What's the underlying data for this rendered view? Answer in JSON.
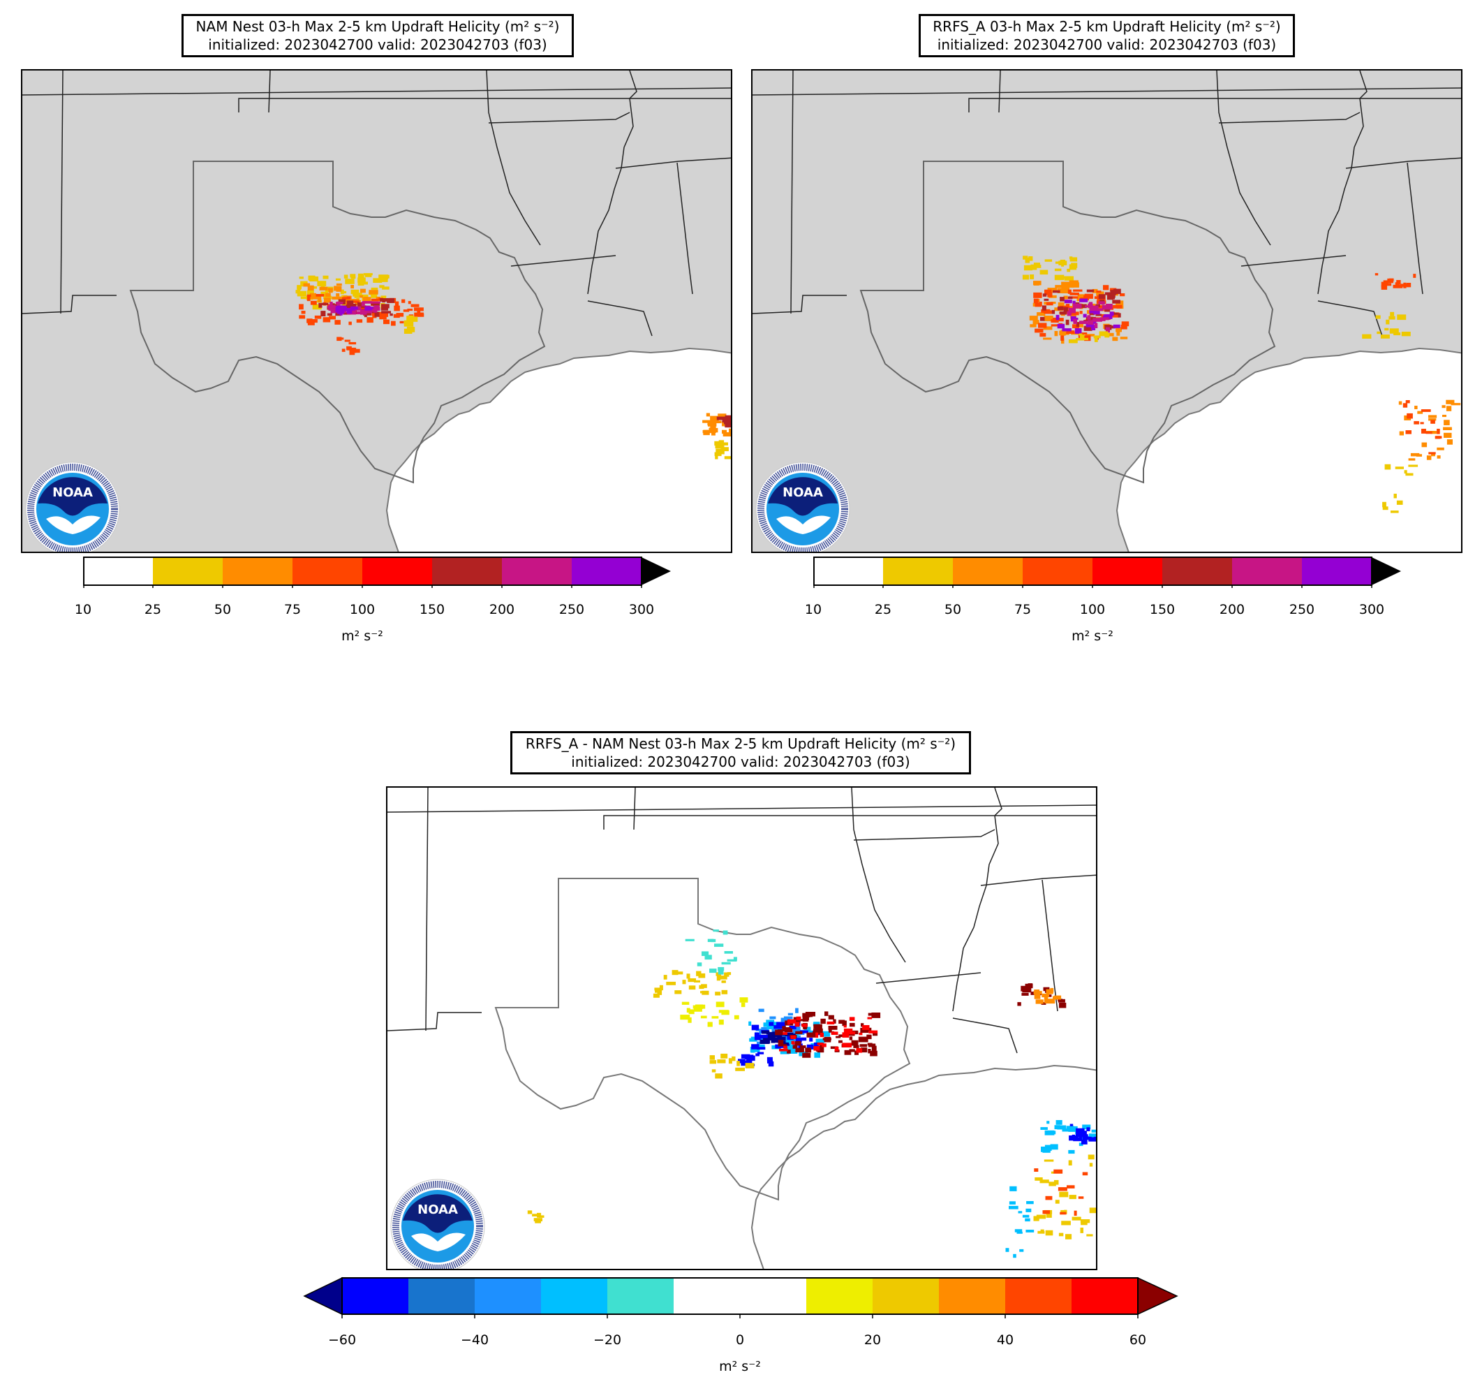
{
  "panels": [
    {
      "id": "nam",
      "title_line1": "NAM Nest 03-h Max 2-5 km Updraft Helicity (m² s⁻²)",
      "title_line2": "initialized: 2023042700 valid: 2023042703 (f03)",
      "land_color": "#d3d3d3"
    },
    {
      "id": "rrfs",
      "title_line1": "RRFS_A 03-h Max 2-5 km Updraft Helicity (m² s⁻²)",
      "title_line2": "initialized: 2023042700 valid: 2023042703 (f03)",
      "land_color": "#d3d3d3"
    },
    {
      "id": "diff",
      "title_line1": "RRFS_A - NAM Nest 03-h Max 2-5 km Updraft Helicity (m² s⁻²)",
      "title_line2": "initialized: 2023042700 valid: 2023042703 (f03)",
      "land_color": "#ffffff"
    }
  ],
  "colorbar_uh": {
    "ticks": [
      "10",
      "25",
      "50",
      "75",
      "100",
      "150",
      "200",
      "250",
      "300"
    ],
    "colors": [
      "#ffffff",
      "#eec900",
      "#ff8c00",
      "#ff4500",
      "#ff0000",
      "#b22222",
      "#c71585",
      "#9400d3"
    ],
    "extend_color": "#000000",
    "unit": "m² s⁻²"
  },
  "colorbar_diff": {
    "ticks": [
      "−60",
      "−40",
      "−20",
      "0",
      "20",
      "40",
      "60"
    ],
    "colors": [
      "#0000ff",
      "#1874cd",
      "#1e90ff",
      "#00bfff",
      "#40e0d0",
      "#ffffff",
      "#ffffff",
      "#eeee00",
      "#eec900",
      "#ff8c00",
      "#ff4500",
      "#ff0000"
    ],
    "extend_low": "#00008b",
    "extend_high": "#8b0000",
    "unit": "m² s⁻²"
  },
  "logo": {
    "name": "NOAA",
    "ring_text": "NATIONAL OCEANIC AND ATMOSPHERIC ADMINISTRATION · U.S. DEPARTMENT OF COMMERCE"
  }
}
